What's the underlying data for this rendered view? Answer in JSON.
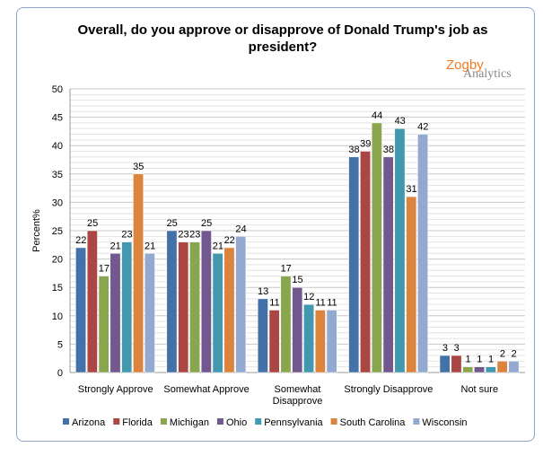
{
  "chart_data": {
    "type": "bar",
    "title": "Overall, do you approve or disapprove of Donald Trump's job as president?",
    "title_lines": [
      "Overall, do you approve or disapprove of Donald Trump's job as",
      "president?"
    ],
    "ylabel": "Percent%",
    "ylim": [
      0,
      50
    ],
    "yticks": [
      0,
      5,
      10,
      15,
      20,
      25,
      30,
      35,
      40,
      45,
      50
    ],
    "grid": true,
    "legend_position": "bottom",
    "categories": [
      "Strongly Approve",
      "Somewhat Approve",
      "Somewhat Disapprove",
      "Strongly Disapprove",
      "Not sure"
    ],
    "category_lines": [
      [
        "Strongly Approve"
      ],
      [
        "Somewhat Approve"
      ],
      [
        "Somewhat",
        "Disapprove"
      ],
      [
        "Strongly Disapprove"
      ],
      [
        "Not sure"
      ]
    ],
    "series": [
      {
        "name": "Arizona",
        "color": "#4472a8",
        "values": [
          22,
          25,
          13,
          38,
          3
        ]
      },
      {
        "name": "Florida",
        "color": "#aa4643",
        "values": [
          25,
          23,
          11,
          39,
          3
        ]
      },
      {
        "name": "Michigan",
        "color": "#89a54e",
        "values": [
          17,
          23,
          17,
          44,
          1
        ]
      },
      {
        "name": "Ohio",
        "color": "#71588f",
        "values": [
          21,
          25,
          15,
          38,
          1
        ]
      },
      {
        "name": "Pennsylvania",
        "color": "#4198af",
        "values": [
          23,
          21,
          12,
          43,
          1
        ]
      },
      {
        "name": "South Carolina",
        "color": "#db843d",
        "values": [
          35,
          22,
          11,
          31,
          2
        ]
      },
      {
        "name": "Wisconsin",
        "color": "#93a9cf",
        "values": [
          21,
          24,
          11,
          42,
          2
        ]
      }
    ]
  },
  "logo": {
    "line1": "Zogby",
    "line2": "Analytics",
    "color1": "#f07a20",
    "color2": "#888888"
  }
}
